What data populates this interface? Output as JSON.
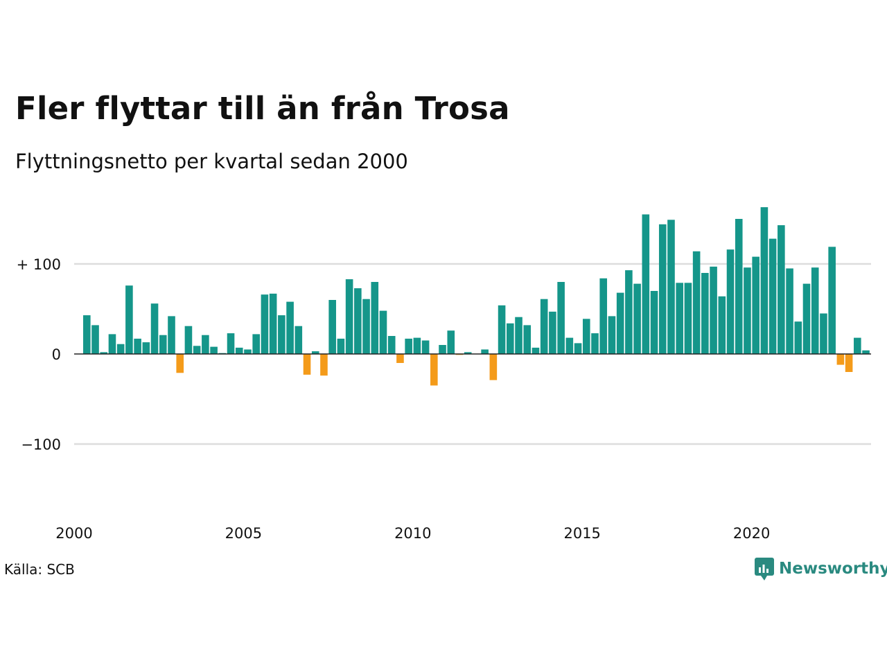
{
  "header": {
    "title": "Fler flyttar till än från Trosa",
    "subtitle": "Flyttningsnetto per kvartal sedan 2000"
  },
  "footer": {
    "source": "Källa: SCB",
    "brand": "Newsworthy",
    "brand_icon": "chart-bubble-icon"
  },
  "colors": {
    "positive": "#15968a",
    "negative": "#f49b1a",
    "grid": "#dddddd",
    "zero_line": "#222222",
    "brand": "#2a8a80"
  },
  "chart_data": {
    "type": "bar",
    "x_start": 2000.0,
    "x_step": 0.25,
    "values": [
      43,
      32,
      2,
      22,
      11,
      76,
      17,
      13,
      56,
      21,
      42,
      -21,
      31,
      9,
      21,
      8,
      1,
      23,
      7,
      5,
      22,
      66,
      67,
      43,
      58,
      31,
      -23,
      3,
      -24,
      60,
      17,
      83,
      73,
      61,
      80,
      48,
      20,
      -10,
      17,
      18,
      15,
      -35,
      10,
      26,
      -1,
      2,
      0,
      5,
      -29,
      54,
      34,
      41,
      32,
      7,
      61,
      47,
      80,
      18,
      12,
      39,
      23,
      84,
      42,
      68,
      93,
      78,
      155,
      70,
      144,
      149,
      79,
      79,
      114,
      90,
      97,
      64,
      116,
      150,
      96,
      108,
      163,
      128,
      143,
      95,
      36,
      78,
      96,
      45,
      119,
      -12,
      -20,
      18,
      4
    ],
    "y_ticks": [
      {
        "value": 100,
        "label": "+ 100"
      },
      {
        "value": 0,
        "label": "0"
      },
      {
        "value": -100,
        "label": "−100"
      }
    ],
    "x_ticks": [
      {
        "value": 2000,
        "label": "2000"
      },
      {
        "value": 2005,
        "label": "2005"
      },
      {
        "value": 2010,
        "label": "2010"
      },
      {
        "value": 2015,
        "label": "2015"
      },
      {
        "value": 2020,
        "label": "2020"
      }
    ],
    "ylim": [
      -180,
      180
    ],
    "xlim": [
      2000,
      2023.25
    ],
    "grid": true,
    "legend": "none"
  }
}
